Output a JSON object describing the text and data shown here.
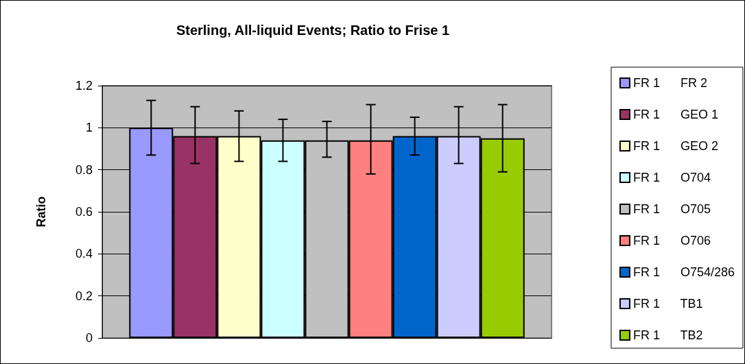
{
  "chart_data": {
    "type": "bar",
    "title": "Sterling, All-liquid Events; Ratio to Frise 1",
    "ylabel": "Ratio",
    "categories": [
      null
    ],
    "series": [
      {
        "name": "FR 1      FR 2",
        "color": "#9999ff",
        "values": [
          1.0
        ],
        "errors": [
          [
            0.87,
            1.13
          ]
        ]
      },
      {
        "name": "FR 1      GEO 1",
        "color": "#993366",
        "values": [
          0.96
        ],
        "errors": [
          [
            0.83,
            1.1
          ]
        ]
      },
      {
        "name": "FR 1      GEO 2",
        "color": "#ffffcc",
        "values": [
          0.96
        ],
        "errors": [
          [
            0.84,
            1.08
          ]
        ]
      },
      {
        "name": "FR 1      O704",
        "color": "#ccffff",
        "values": [
          0.94
        ],
        "errors": [
          [
            0.84,
            1.04
          ]
        ]
      },
      {
        "name": "FR 1      O705",
        "color": "#c0c0c0",
        "values": [
          0.94
        ],
        "errors": [
          [
            0.86,
            1.03
          ]
        ]
      },
      {
        "name": "FR 1      O706",
        "color": "#ff8080",
        "values": [
          0.94
        ],
        "errors": [
          [
            0.78,
            1.11
          ]
        ]
      },
      {
        "name": "FR 1      O754/286",
        "color": "#0066cc",
        "values": [
          0.96
        ],
        "errors": [
          [
            0.87,
            1.05
          ]
        ]
      },
      {
        "name": "FR 1      TB1",
        "color": "#ccccff",
        "values": [
          0.96
        ],
        "errors": [
          [
            0.83,
            1.1
          ]
        ]
      },
      {
        "name": "FR 1      TB2",
        "color": "#99cc00",
        "values": [
          0.95
        ],
        "errors": [
          [
            0.79,
            1.11
          ]
        ]
      }
    ],
    "ylim": [
      0,
      1.2
    ],
    "yticks": [
      0,
      0.2,
      0.4,
      0.6,
      0.8,
      1,
      1.2
    ],
    "grid": "y",
    "legend": "right"
  }
}
